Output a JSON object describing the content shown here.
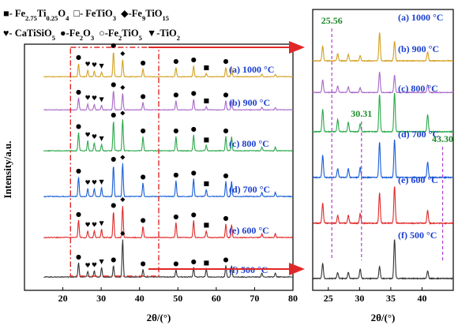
{
  "legend": {
    "line1": [
      {
        "symbol": "■",
        "text": "- Fe",
        "sub1": "2.75",
        "text2": "Ti",
        "sub2": "0.25",
        "text3": "O",
        "sub3": "4"
      },
      {
        "symbol": "□",
        "text": "- FeTiO",
        "sub1": "3",
        "text2": "",
        "sub2": "",
        "text3": "",
        "sub3": ""
      },
      {
        "symbol": "◆",
        "text": "-Fe",
        "sub1": "9",
        "text2": "TiO",
        "sub2": "15",
        "text3": "",
        "sub3": ""
      }
    ],
    "line2": [
      {
        "symbol": "♥",
        "text": "- CaTiSiO",
        "sub1": "5",
        "text2": "",
        "sub2": "",
        "text3": "",
        "sub3": ""
      },
      {
        "symbol": "●",
        "text": "-Fe",
        "sub1": "2",
        "text2": "O",
        "sub2": "3",
        "text3": "",
        "sub3": ""
      },
      {
        "symbol": "○",
        "text": "-Fe",
        "sub1": "2",
        "text2": "TiO",
        "sub2": "5",
        "text3": "",
        "sub3": ""
      },
      {
        "symbol": "▼",
        "text": "-TiO",
        "sub1": "2",
        "text2": "",
        "sub2": "",
        "text3": "",
        "sub3": ""
      }
    ]
  },
  "chart_data": [
    {
      "type": "line",
      "panel": "main",
      "xlabel": "2θ/(°)",
      "ylabel": "Intensity/a.u.",
      "xlim": [
        10,
        80
      ],
      "xticks": [
        20,
        30,
        40,
        50,
        60,
        70,
        80
      ],
      "highlight_box_x": [
        22,
        45
      ],
      "series": [
        {
          "name": "(a) 1000 °C",
          "color": "#d4a020"
        },
        {
          "name": "(b) 900 °C",
          "color": "#a868c8"
        },
        {
          "name": "(c) 800 °C",
          "color": "#2aa84a"
        },
        {
          "name": "(d) 700 °C",
          "color": "#1a5ed8"
        },
        {
          "name": "(e) 600 °C",
          "color": "#e02828"
        },
        {
          "name": "(f) 500 °C",
          "color": "#333333"
        }
      ],
      "peaks": [
        {
          "x": 24.1,
          "h": [
            0.42,
            0.4,
            0.52,
            0.5,
            0.46,
            0.38
          ]
        },
        {
          "x": 26.5,
          "h": [
            0.2,
            0.2,
            0.28,
            0.2,
            0.18,
            0.15
          ]
        },
        {
          "x": 28.2,
          "h": [
            0.18,
            0.18,
            0.22,
            0.2,
            0.18,
            0.16
          ]
        },
        {
          "x": 30.1,
          "h": [
            0.15,
            0.15,
            0.18,
            0.22,
            0.22,
            0.25
          ]
        },
        {
          "x": 33.2,
          "h": [
            0.8,
            0.65,
            0.85,
            0.8,
            0.7,
            0.3
          ]
        },
        {
          "x": 35.6,
          "h": [
            0.55,
            0.55,
            0.9,
            0.85,
            0.85,
            1.0
          ]
        },
        {
          "x": 40.9,
          "h": [
            0.25,
            0.25,
            0.4,
            0.35,
            0.3,
            0.2
          ]
        },
        {
          "x": 49.5,
          "h": [
            0.3,
            0.3,
            0.4,
            0.4,
            0.4,
            0.2
          ]
        },
        {
          "x": 54.1,
          "h": [
            0.35,
            0.35,
            0.45,
            0.45,
            0.45,
            0.25
          ]
        },
        {
          "x": 57.4,
          "h": [
            0.1,
            0.1,
            0.15,
            0.18,
            0.18,
            0.22
          ]
        },
        {
          "x": 62.5,
          "h": [
            0.3,
            0.3,
            0.4,
            0.38,
            0.35,
            0.3
          ]
        },
        {
          "x": 64.0,
          "h": [
            0.3,
            0.3,
            0.4,
            0.38,
            0.35,
            0.3
          ]
        },
        {
          "x": 71.9,
          "h": [
            0.08,
            0.08,
            0.1,
            0.1,
            0.1,
            0.1
          ]
        },
        {
          "x": 75.4,
          "h": [
            0.08,
            0.08,
            0.1,
            0.1,
            0.1,
            0.1
          ]
        }
      ]
    },
    {
      "type": "line",
      "panel": "zoom",
      "xlabel": "2θ/(°)",
      "xlim": [
        22.5,
        45
      ],
      "xticks": [
        25,
        30,
        35,
        40
      ],
      "series": [
        {
          "name": "(a) 1000 °C",
          "color": "#d4a020"
        },
        {
          "name": "(b) 900 °C",
          "color": "#a868c8"
        },
        {
          "name": "(c) 800 °C",
          "color": "#2aa84a"
        },
        {
          "name": "(d) 700 °C",
          "color": "#1a5ed8"
        },
        {
          "name": "(e) 600 °C",
          "color": "#e02828"
        },
        {
          "name": "(f) 500 °C",
          "color": "#333333"
        }
      ],
      "annotations": [
        {
          "x": 25.56,
          "label": "25.56"
        },
        {
          "x": 30.31,
          "label": "30.31"
        },
        {
          "x": 43.3,
          "label": "43.30"
        }
      ]
    }
  ]
}
